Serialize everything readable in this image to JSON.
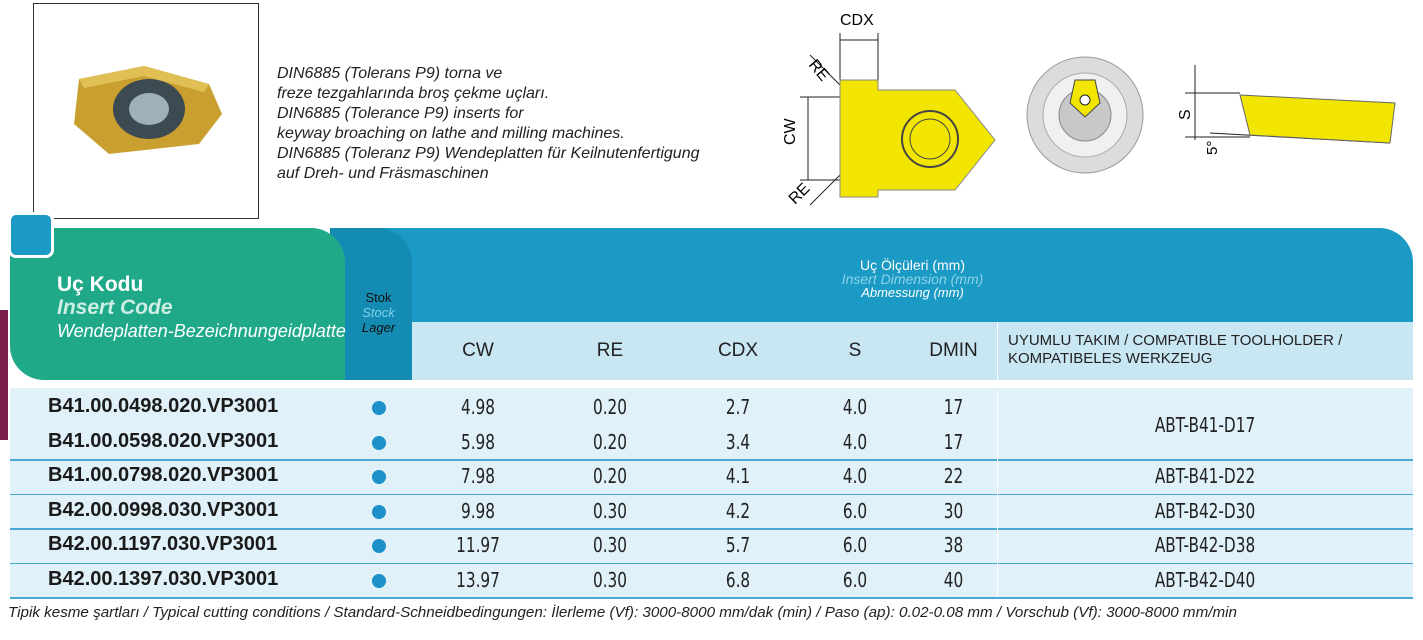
{
  "description": [
    "DIN6885 (Tolerans P9) torna ve",
    "freze tezgahlarında broş çekme uçları.",
    "DIN6885 (Tolerance P9) inserts for",
    "keyway broaching on lathe and milling machines.",
    "DIN6885 (Toleranz P9) Wendeplatten für Keilnutenfertigung",
    "auf Dreh- und Fräsmaschinen"
  ],
  "diagram_labels": {
    "cdx": "CDX",
    "re_top": "RE",
    "cw": "CW",
    "re_bottom": "RE",
    "s": "S",
    "angle": "5°"
  },
  "table": {
    "code_header": [
      "Uç Kodu",
      "Insert Code",
      "Wendeplatten-Bezeichnungeidplatte"
    ],
    "stock_header": [
      "Stok",
      "Stock",
      "Lager"
    ],
    "dimension_header": [
      "Uç Ölçüleri (mm)",
      "Insert Dimension (mm)",
      "Abmessung (mm)"
    ],
    "columns": [
      "CW",
      "RE",
      "CDX",
      "S",
      "DMIN"
    ],
    "toolholder_header": [
      "UYUMLU TAKIM / COMPATIBLE TOOLHOLDER /",
      "KOMPATIBELES WERKZEUG"
    ],
    "rows": [
      [
        "B41.00.0498.020.VP3001",
        "4.98",
        "0.20",
        "2.7",
        "4.0",
        "17"
      ],
      [
        "B41.00.0598.020.VP3001",
        "5.98",
        "0.20",
        "3.4",
        "4.0",
        "17"
      ],
      [
        "B41.00.0798.020.VP3001",
        "7.98",
        "0.20",
        "4.1",
        "4.0",
        "22"
      ],
      [
        "B42.00.0998.030.VP3001",
        "9.98",
        "0.30",
        "4.2",
        "6.0",
        "30"
      ],
      [
        "B42.00.1197.030.VP3001",
        "11.97",
        "0.30",
        "5.7",
        "6.0",
        "38"
      ],
      [
        "B42.00.1397.030.VP3001",
        "13.97",
        "0.30",
        "6.8",
        "6.0",
        "40"
      ]
    ],
    "toolholders": [
      "ABT-B41-D17",
      null,
      "ABT-B41-D22",
      "ABT-B42-D30",
      "ABT-B42-D38",
      "ABT-B42-D40"
    ]
  },
  "footer": "Tipik kesme şartları / Typical cutting conditions / Standard-Schneidbedingungen: İlerleme (Vf): 3000-8000 mm/dak (min) / Paso (ap): 0.02-0.08 mm / Vorschub (Vf): 3000-8000 mm/min"
}
